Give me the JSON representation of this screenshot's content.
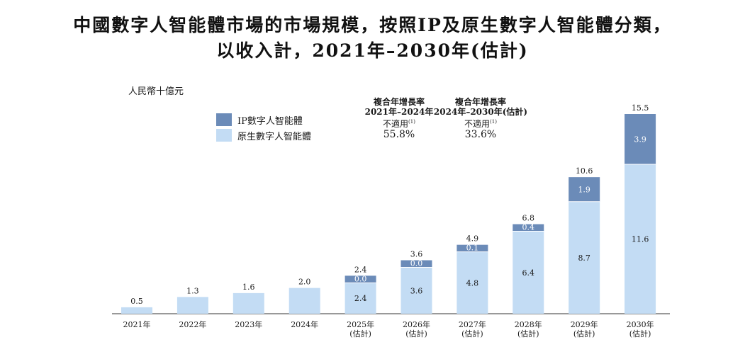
{
  "title_line1": "中國數字人智能體市場的市場規模，按照IP及原生數字人智能體分類，",
  "title_line2": "以收入計，2021年–2030年(估計)",
  "unit_label": "人民幣十億元",
  "legend": {
    "ip_label": "IP數字人智能體",
    "native_label": "原生數字人智能體",
    "ip_color": "#6b8bb8",
    "native_color": "#c3dcf4"
  },
  "cagr": {
    "col1": {
      "header1": "複合年增長率",
      "header2": "2021年–2024年",
      "note": "不適用",
      "note_ref": "(1)",
      "value": "55.8%"
    },
    "col2": {
      "header1": "複合年增長率",
      "header2": "2024年–2030年(估計)",
      "note": "不適用",
      "note_ref": "(1)",
      "value": "33.6%"
    }
  },
  "chart_data": {
    "type": "bar",
    "stacked": true,
    "categories": [
      [
        "2021年"
      ],
      [
        "2022年"
      ],
      [
        "2023年"
      ],
      [
        "2024年"
      ],
      [
        "2025年",
        "(估計)"
      ],
      [
        "2026年",
        "(估計)"
      ],
      [
        "2027年",
        "(估計)"
      ],
      [
        "2028年",
        "(估計)"
      ],
      [
        "2029年",
        "(估計)"
      ],
      [
        "2030年",
        "(估計)"
      ]
    ],
    "series": [
      {
        "name": "原生數字人智能體",
        "values": [
          0.5,
          1.3,
          1.6,
          2.0,
          2.4,
          3.6,
          4.8,
          6.4,
          8.7,
          11.6
        ],
        "labels": [
          null,
          null,
          null,
          null,
          "2.4",
          "3.6",
          "4.8",
          "6.4",
          "8.7",
          "11.6"
        ]
      },
      {
        "name": "IP數字人智能體",
        "values": [
          0,
          0,
          0,
          0,
          0.0,
          0.0,
          0.1,
          0.4,
          1.9,
          3.9
        ],
        "labels": [
          null,
          null,
          null,
          null,
          "0.0",
          "0.0",
          "0.1",
          "0.4",
          "1.9",
          "3.9"
        ]
      }
    ],
    "totals": [
      "0.5",
      "1.3",
      "1.6",
      "2.0",
      "2.4",
      "3.6",
      "4.9",
      "6.8",
      "10.6",
      "15.5"
    ],
    "ylabel": "人民幣十億元",
    "ylim": [
      0,
      15.5
    ],
    "grid": false,
    "legend_position": "top-left"
  }
}
